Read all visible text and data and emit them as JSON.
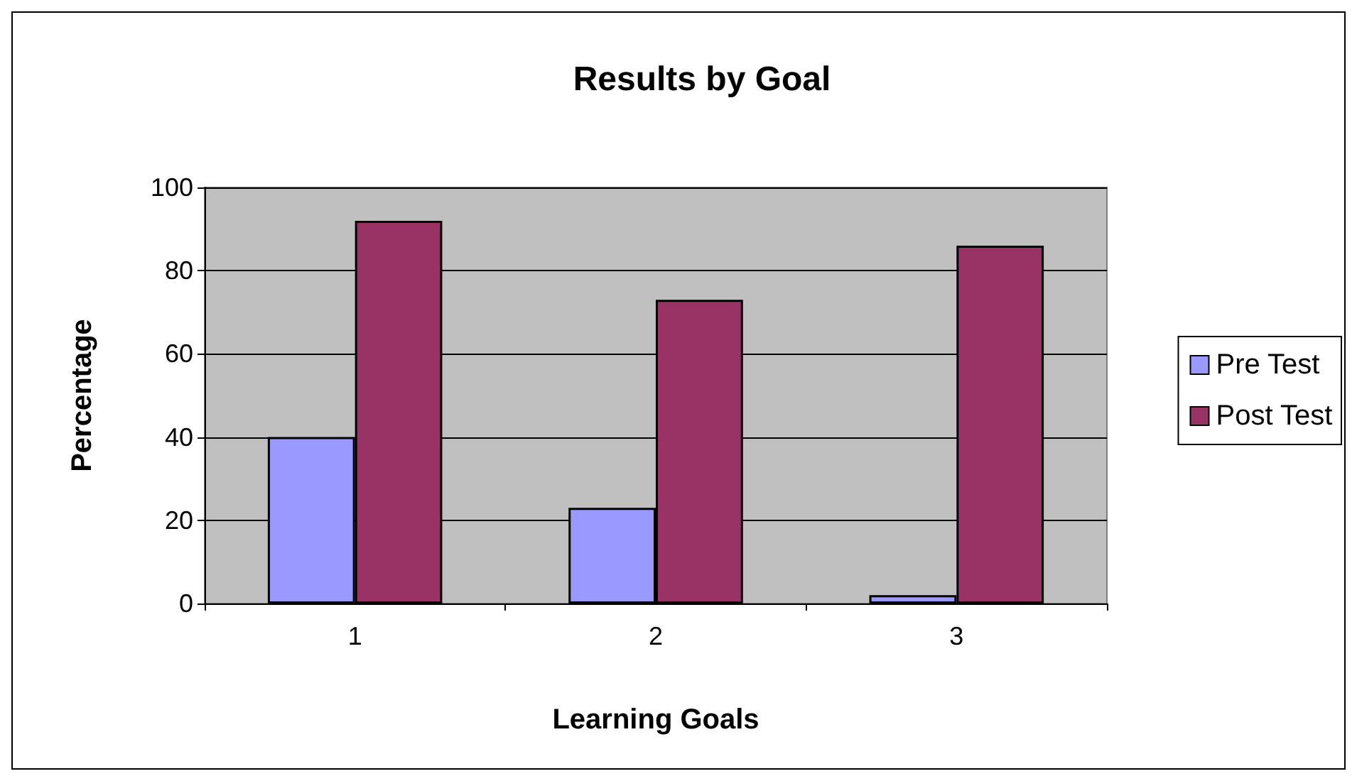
{
  "chart_data": {
    "type": "bar",
    "title": "Results by Goal",
    "xlabel": "Learning Goals",
    "ylabel": "Percentage",
    "categories": [
      "1",
      "2",
      "3"
    ],
    "series": [
      {
        "name": "Pre Test",
        "color": "#9999ff",
        "values": [
          40,
          23,
          2
        ]
      },
      {
        "name": "Post Test",
        "color": "#993366",
        "values": [
          92,
          73,
          86
        ]
      }
    ],
    "ylim": [
      0,
      100
    ],
    "yticks": [
      0,
      20,
      40,
      60,
      80,
      100
    ],
    "grid": "y",
    "legend": "right"
  }
}
